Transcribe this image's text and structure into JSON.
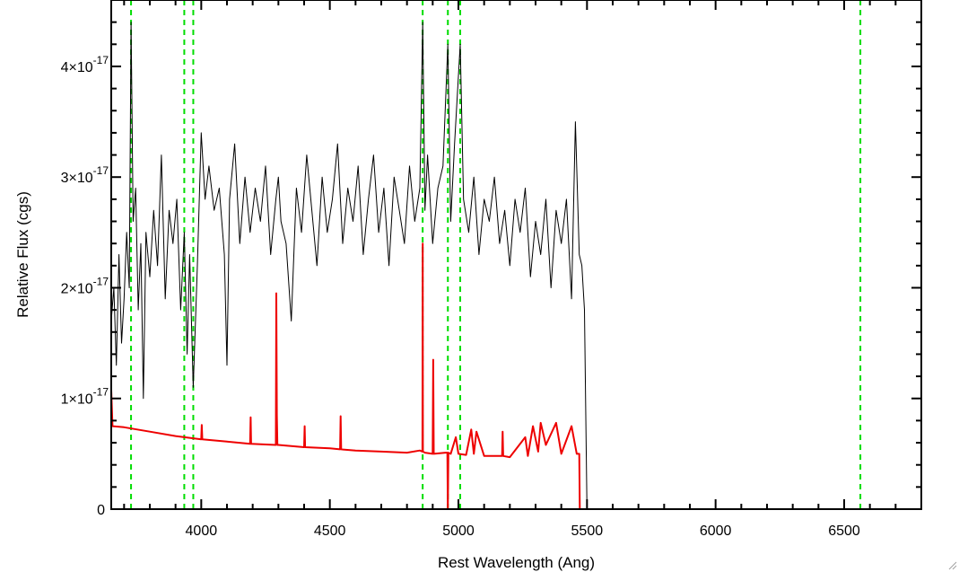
{
  "chart_data": {
    "type": "line",
    "title": "",
    "xlabel": "Rest Wavelength (Ang)",
    "ylabel": "Relative Flux (cgs)",
    "xlim": [
      3650,
      6800
    ],
    "ylim": [
      0,
      4.6e-17
    ],
    "x_ticks": [
      4000,
      4500,
      5000,
      5500,
      6000,
      6500
    ],
    "x_tick_labels": [
      "4000",
      "4500",
      "5000",
      "5500",
      "6000",
      "6500"
    ],
    "y_ticks": [
      0,
      1e-17,
      2e-17,
      3e-17,
      4e-17
    ],
    "y_tick_labels": [
      {
        "mantissa": "0",
        "exponent": ""
      },
      {
        "mantissa": "1×10",
        "exponent": "-17"
      },
      {
        "mantissa": "2×10",
        "exponent": "-17"
      },
      {
        "mantissa": "3×10",
        "exponent": "-17"
      },
      {
        "mantissa": "4×10",
        "exponent": "-17"
      }
    ],
    "grid": false,
    "legend": "none",
    "reference_lines": {
      "color": "#00dd00",
      "style": "dashed",
      "x": [
        3727,
        3934,
        3969,
        4861,
        4959,
        5007,
        6563
      ]
    },
    "series": [
      {
        "color": "#000000",
        "x": [
          3650,
          3660,
          3670,
          3680,
          3690,
          3700,
          3710,
          3720,
          3727,
          3735,
          3745,
          3755,
          3765,
          3775,
          3785,
          3800,
          3815,
          3830,
          3845,
          3860,
          3875,
          3890,
          3905,
          3920,
          3934,
          3945,
          3955,
          3969,
          3985,
          4000,
          4015,
          4030,
          4050,
          4070,
          4090,
          4100,
          4110,
          4130,
          4150,
          4170,
          4190,
          4210,
          4230,
          4250,
          4270,
          4290,
          4300,
          4310,
          4330,
          4350,
          4370,
          4390,
          4410,
          4430,
          4450,
          4470,
          4490,
          4510,
          4530,
          4550,
          4570,
          4590,
          4610,
          4630,
          4650,
          4670,
          4690,
          4710,
          4730,
          4750,
          4770,
          4790,
          4810,
          4830,
          4850,
          4861,
          4870,
          4880,
          4900,
          4920,
          4940,
          4959,
          4970,
          4985,
          5007,
          5020,
          5040,
          5060,
          5080,
          5100,
          5120,
          5140,
          5160,
          5180,
          5200,
          5220,
          5240,
          5260,
          5280,
          5300,
          5320,
          5340,
          5360,
          5380,
          5400,
          5420,
          5440,
          5455,
          5470,
          5480,
          5490,
          5500,
          5520,
          6000,
          6500,
          6800
        ],
        "values": [
          1.7e-17,
          2e-17,
          1.3e-17,
          2.3e-17,
          1.5e-17,
          1.9e-17,
          2.5e-17,
          2e-17,
          4.4e-17,
          2.6e-17,
          2.9e-17,
          1.8e-17,
          2.4e-17,
          1e-17,
          2.5e-17,
          2.1e-17,
          2.7e-17,
          2.2e-17,
          3.2e-17,
          1.9e-17,
          2.7e-17,
          2.4e-17,
          2.8e-17,
          1.8e-17,
          2.5e-17,
          1.4e-17,
          2.3e-17,
          1.1e-17,
          2.2e-17,
          3.4e-17,
          2.8e-17,
          3.1e-17,
          2.7e-17,
          2.9e-17,
          2.3e-17,
          1.3e-17,
          2.8e-17,
          3.3e-17,
          2.4e-17,
          3e-17,
          2.5e-17,
          2.9e-17,
          2.6e-17,
          3.1e-17,
          2.3e-17,
          2.8e-17,
          3e-17,
          2.6e-17,
          2.4e-17,
          1.7e-17,
          2.9e-17,
          2.5e-17,
          3.2e-17,
          2.7e-17,
          2.2e-17,
          3e-17,
          2.5e-17,
          2.8e-17,
          3.3e-17,
          2.4e-17,
          2.9e-17,
          2.6e-17,
          3.1e-17,
          2.3e-17,
          2.8e-17,
          3.2e-17,
          2.5e-17,
          2.9e-17,
          2.2e-17,
          3e-17,
          2.7e-17,
          2.4e-17,
          3.1e-17,
          2.6e-17,
          2.9e-17,
          4.4e-17,
          2.7e-17,
          3.2e-17,
          2.4e-17,
          2.9e-17,
          3.1e-17,
          4.2e-17,
          2.6e-17,
          3.3e-17,
          4.2e-17,
          2.8e-17,
          2.5e-17,
          3e-17,
          2.3e-17,
          2.8e-17,
          2.6e-17,
          3e-17,
          2.4e-17,
          2.7e-17,
          2.2e-17,
          2.8e-17,
          2.5e-17,
          2.9e-17,
          2.1e-17,
          2.6e-17,
          2.3e-17,
          2.8e-17,
          2e-17,
          2.7e-17,
          2.4e-17,
          2.8e-17,
          1.9e-17,
          3.5e-17,
          2.3e-17,
          2.2e-17,
          1.8e-17,
          0,
          0,
          0,
          0,
          0
        ]
      },
      {
        "color": "#ee0000",
        "x": [
          3650,
          3655,
          3700,
          3800,
          3900,
          4000,
          4002,
          4004,
          4100,
          4190,
          4192,
          4194,
          4290,
          4292,
          4294,
          4296,
          4300,
          4400,
          4402,
          4404,
          4500,
          4540,
          4542,
          4544,
          4600,
          4700,
          4800,
          4850,
          4860,
          4861,
          4862,
          4870,
          4900,
          4902,
          4904,
          4950,
          4957,
          4959,
          4961,
          4970,
          4990,
          5000,
          5030,
          5050,
          5060,
          5070,
          5100,
          5170,
          5172,
          5174,
          5200,
          5260,
          5270,
          5290,
          5310,
          5320,
          5340,
          5380,
          5400,
          5440,
          5460,
          5470,
          5472,
          5480,
          6000,
          6500,
          6800
        ],
        "values": [
          1.08e-17,
          7.5e-18,
          7.4e-18,
          7e-18,
          6.6e-18,
          6.3e-18,
          7.6e-18,
          6.3e-18,
          6.1e-18,
          5.9e-18,
          8.3e-18,
          5.9e-18,
          5.8e-18,
          1.95e-17,
          8.5e-18,
          5.8e-18,
          5.8e-18,
          5.6e-18,
          7.5e-18,
          5.6e-18,
          5.5e-18,
          5.4e-18,
          8.4e-18,
          5.4e-18,
          5.3e-18,
          5.2e-18,
          5.1e-18,
          5.3e-18,
          5.2e-18,
          2.4e-17,
          5.2e-18,
          5.1e-18,
          5e-18,
          1.35e-17,
          5e-18,
          5.1e-18,
          5.1e-18,
          0,
          5.1e-18,
          5e-18,
          6.5e-18,
          5e-18,
          4.9e-18,
          7.2e-18,
          5e-18,
          7e-18,
          4.8e-18,
          4.8e-18,
          7e-18,
          4.8e-18,
          4.7e-18,
          6.5e-18,
          4.8e-18,
          7.5e-18,
          5.2e-18,
          7.8e-18,
          5.8e-18,
          7.8e-18,
          5e-18,
          7.5e-18,
          5e-18,
          5e-18,
          0,
          0,
          0,
          0,
          0
        ]
      }
    ]
  }
}
